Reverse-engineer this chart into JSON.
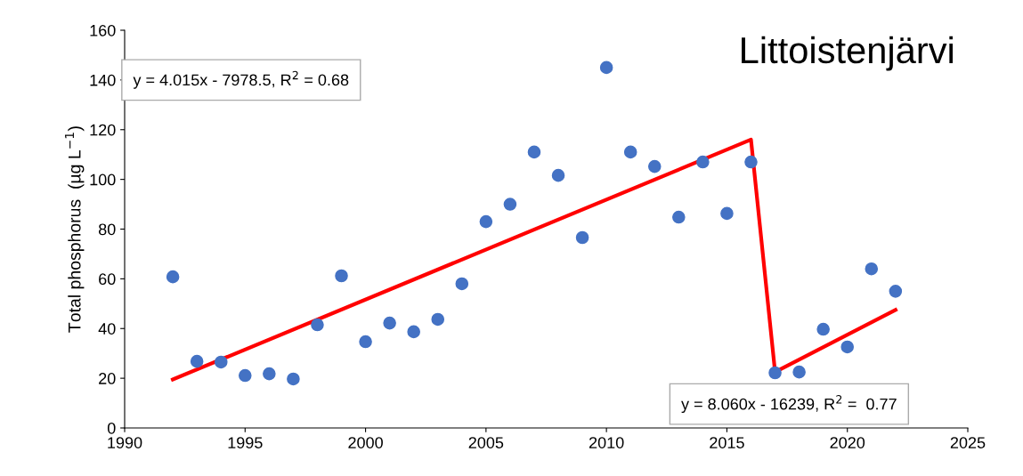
{
  "chart_data": {
    "type": "scatter",
    "title": "Littoistenjärvi",
    "ylabel": "Total phosphorus  (µg L$^{−1}$)",
    "annotations": [
      "y = 4.015x - 7978.5, R$^{2}$ = 0.68",
      "y = 8.060x - 16239, R$^{2}$ =  0.77"
    ],
    "xlim": [
      1990,
      2025
    ],
    "xticks": [
      1990,
      1995,
      2000,
      2005,
      2010,
      2015,
      2020,
      2025
    ],
    "ylim": [
      0,
      160
    ],
    "yticks": [
      0,
      20,
      40,
      60,
      80,
      100,
      120,
      140,
      160
    ],
    "grid": false,
    "series": [
      {
        "color": "#4472c4",
        "marker": "circle",
        "x": [
          1992,
          1993,
          1994,
          1995,
          1996,
          1997,
          1998,
          1999,
          2000,
          2001,
          2002,
          2003,
          2004,
          2005,
          2006,
          2007,
          2008,
          2009,
          2010,
          2011,
          2012,
          2013,
          2014,
          2015,
          2016,
          2017,
          2018,
          2019,
          2020,
          2021,
          2022
        ],
        "values": [
          60.8,
          26.8,
          26.5,
          21.1,
          21.8,
          19.7,
          41.5,
          61.2,
          34.7,
          42.2,
          38.7,
          43.7,
          58,
          83,
          90,
          111,
          101.6,
          76.6,
          145,
          111,
          105.2,
          84.8,
          107,
          86.3,
          107,
          22.2,
          22.5,
          39.7,
          32.6,
          64,
          55
        ]
      },
      {
        "type": "line",
        "color": "#ff0000",
        "marker": "none",
        "line_style": "solid",
        "x": [
          1992,
          2016,
          2017,
          2022
        ],
        "values": [
          19.5,
          116,
          22.5,
          47.5
        ]
      }
    ]
  }
}
